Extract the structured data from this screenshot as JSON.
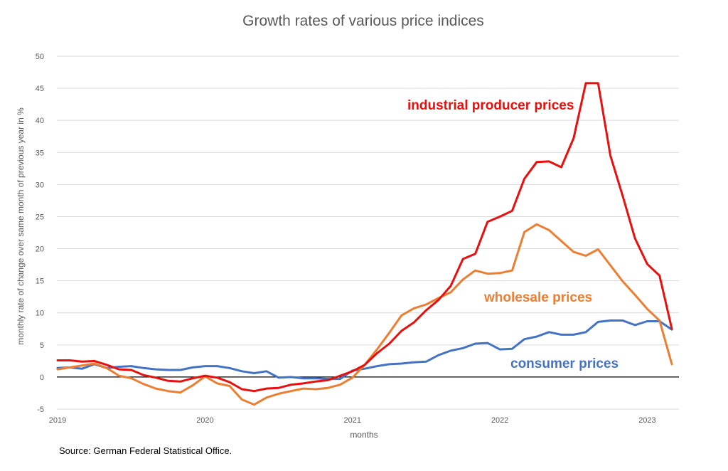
{
  "chart_data": {
    "type": "line",
    "title": "Growth rates of various price indices",
    "xlabel": "months",
    "ylabel": "monthly rate of change over same month of previous year in %",
    "source": "Source: German Federal Statistical Office.",
    "ylim": [
      -5,
      50
    ],
    "yticks": [
      -5,
      0,
      5,
      10,
      15,
      20,
      25,
      30,
      35,
      40,
      45,
      50
    ],
    "xlim": [
      "2019-01",
      "2023-03"
    ],
    "xticks": [
      "2019",
      "2020",
      "2021",
      "2022",
      "2023"
    ],
    "grid": true,
    "legend": "inline labels",
    "x": [
      "2019-01",
      "2019-02",
      "2019-03",
      "2019-04",
      "2019-05",
      "2019-06",
      "2019-07",
      "2019-08",
      "2019-09",
      "2019-10",
      "2019-11",
      "2019-12",
      "2020-01",
      "2020-02",
      "2020-03",
      "2020-04",
      "2020-05",
      "2020-06",
      "2020-07",
      "2020-08",
      "2020-09",
      "2020-10",
      "2020-11",
      "2020-12",
      "2021-01",
      "2021-02",
      "2021-03",
      "2021-04",
      "2021-05",
      "2021-06",
      "2021-07",
      "2021-08",
      "2021-09",
      "2021-10",
      "2021-11",
      "2021-12",
      "2022-01",
      "2022-02",
      "2022-03",
      "2022-04",
      "2022-05",
      "2022-06",
      "2022-07",
      "2022-08",
      "2022-09",
      "2022-10",
      "2022-11",
      "2022-12",
      "2023-01",
      "2023-02",
      "2023-03"
    ],
    "series": [
      {
        "name": "industrial producer prices",
        "color": "#e8100f",
        "values": [
          2.6,
          2.6,
          2.4,
          2.5,
          1.9,
          1.2,
          1.1,
          0.3,
          -0.1,
          -0.6,
          -0.7,
          -0.2,
          0.2,
          -0.1,
          -0.8,
          -1.9,
          -2.2,
          -1.8,
          -1.7,
          -1.2,
          -1.0,
          -0.7,
          -0.5,
          0.2,
          0.9,
          1.9,
          3.7,
          5.2,
          7.2,
          8.5,
          10.4,
          12.0,
          14.2,
          18.4,
          19.2,
          24.2,
          25.0,
          25.9,
          30.9,
          33.5,
          33.6,
          32.7,
          37.2,
          45.8,
          45.8,
          34.5,
          28.2,
          21.6,
          17.6,
          15.8,
          7.5
        ]
      },
      {
        "name": "wholesale prices",
        "color": "#ed7d31",
        "values": [
          1.2,
          1.5,
          1.8,
          2.1,
          1.4,
          0.2,
          -0.2,
          -1.1,
          -1.8,
          -2.2,
          -2.4,
          -1.3,
          0.1,
          -1.0,
          -1.4,
          -3.5,
          -4.3,
          -3.2,
          -2.6,
          -2.2,
          -1.8,
          -1.9,
          -1.7,
          -1.2,
          -0.1,
          1.9,
          4.3,
          6.9,
          9.6,
          10.7,
          11.3,
          12.3,
          13.2,
          15.2,
          16.6,
          16.1,
          16.2,
          16.6,
          22.6,
          23.8,
          22.9,
          21.2,
          19.5,
          18.9,
          19.9,
          17.4,
          14.9,
          12.8,
          10.6,
          8.8,
          2.0
        ]
      },
      {
        "name": "consumer prices",
        "color": "#4472c4",
        "values": [
          1.4,
          1.5,
          1.3,
          2.0,
          1.4,
          1.6,
          1.7,
          1.4,
          1.2,
          1.1,
          1.1,
          1.5,
          1.7,
          1.7,
          1.4,
          0.9,
          0.6,
          0.9,
          -0.1,
          0.0,
          -0.2,
          -0.2,
          -0.3,
          -0.3,
          1.0,
          1.3,
          1.7,
          2.0,
          2.1,
          2.3,
          2.4,
          3.4,
          4.1,
          4.5,
          5.2,
          5.3,
          4.3,
          4.4,
          5.9,
          6.3,
          7.0,
          6.6,
          6.6,
          7.0,
          8.6,
          8.8,
          8.8,
          8.1,
          8.7,
          8.7,
          7.4
        ]
      }
    ]
  }
}
